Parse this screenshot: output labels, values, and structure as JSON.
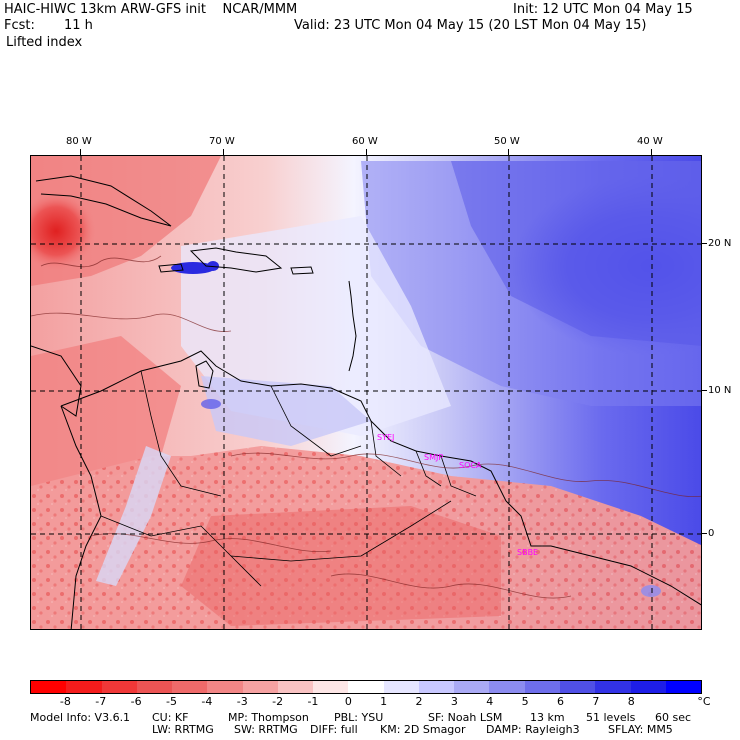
{
  "header": {
    "model_title": "HAIC-HIWC 13km ARW-GFS init    NCAR/MMM",
    "init": "Init: 12 UTC Mon 04 May 15",
    "fcst_label": "Fcst:",
    "fcst_value": "11 h",
    "valid": "Valid: 23 UTC Mon 04 May 15 (20 LST Mon 04 May 15)",
    "field": "Lifted index"
  },
  "map": {
    "lon_labels": [
      "80 W",
      "70 W",
      "60 W",
      "50 W",
      "40 W"
    ],
    "lat_labels": [
      "20 N",
      "10 N",
      "0"
    ],
    "stations": [
      "SYEJ",
      "SMJP",
      "SOCA",
      "SBBE"
    ]
  },
  "colorbar": {
    "labels": [
      "-8",
      "-7",
      "-6",
      "-5",
      "-4",
      "-3",
      "-2",
      "-1",
      "0",
      "1",
      "2",
      "3",
      "4",
      "5",
      "6",
      "7",
      "8"
    ],
    "unit": "°C",
    "colors": [
      "#ff0000",
      "#f41c1c",
      "#f03838",
      "#ec5454",
      "#ef6a6a",
      "#f28686",
      "#f6a2a2",
      "#f9c3c3",
      "#fde6e6",
      "#ffffff",
      "#e6e6ff",
      "#c8c8ff",
      "#aaaaf5",
      "#8c8cf0",
      "#6e6eeb",
      "#5050e6",
      "#3232e6",
      "#1e1ee8",
      "#0000ff"
    ]
  },
  "footer": {
    "line1": [
      "Model Info: V3.6.1",
      "CU: KF",
      "MP: Thompson",
      "PBL: YSU",
      "SF: Noah LSM",
      "13 km",
      "51 levels",
      "60 sec"
    ],
    "line2": [
      "LW: RRTMG",
      "SW: RRTMG",
      "DIFF: full",
      "KM: 2D Smagor",
      "DAMP: Rayleigh3",
      "SFLAY: MM5"
    ]
  }
}
